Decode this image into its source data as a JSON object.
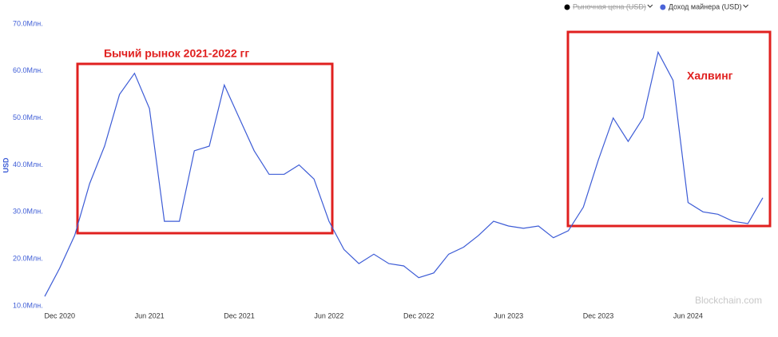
{
  "chart_data": {
    "type": "line",
    "y_label": "USD",
    "legend": [
      {
        "name": "Рыночная цена (USD)",
        "color": "#000000",
        "hidden": true
      },
      {
        "name": "Доход майнера (USD)",
        "color": "#4a63d8",
        "hidden": false
      }
    ],
    "legend_position": "top-right",
    "annotations": [
      "Бычий рынок 2021-2022 гг",
      "Халвинг"
    ],
    "watermark": "Blockchain.com",
    "x": [
      "2020-11",
      "2020-12",
      "2021-01",
      "2021-02",
      "2021-03",
      "2021-04",
      "2021-05",
      "2021-06",
      "2021-07",
      "2021-08",
      "2021-09",
      "2021-10",
      "2021-11",
      "2021-12",
      "2022-01",
      "2022-02",
      "2022-03",
      "2022-04",
      "2022-05",
      "2022-06",
      "2022-07",
      "2022-08",
      "2022-09",
      "2022-10",
      "2022-11",
      "2022-12",
      "2023-01",
      "2023-02",
      "2023-03",
      "2023-04",
      "2023-05",
      "2023-06",
      "2023-07",
      "2023-08",
      "2023-09",
      "2023-10",
      "2023-11",
      "2023-12",
      "2024-01",
      "2024-02",
      "2024-03",
      "2024-04",
      "2024-05",
      "2024-06",
      "2024-07",
      "2024-08",
      "2024-09",
      "2024-10",
      "2024-11"
    ],
    "series": [
      {
        "name": "Доход майнера (USD)",
        "color": "#3d5cd6",
        "values": [
          12,
          18,
          25,
          36,
          44,
          55,
          59.5,
          52,
          28,
          28,
          43,
          44,
          57,
          50,
          43,
          38,
          38,
          40,
          37,
          28,
          22,
          19,
          21,
          19,
          18.5,
          16,
          17,
          21,
          22.5,
          25,
          28,
          27,
          26.5,
          27,
          24.5,
          26,
          31,
          41,
          50,
          45,
          50,
          64,
          58,
          32,
          30,
          29.5,
          28,
          27.5,
          33
        ]
      }
    ],
    "xlim": [
      "2020-11",
      "2024-11"
    ],
    "xticks": [
      {
        "value": "2020-12",
        "label": "Dec 2020"
      },
      {
        "value": "2021-06",
        "label": "Jun 2021"
      },
      {
        "value": "2021-12",
        "label": "Dec 2021"
      },
      {
        "value": "2022-06",
        "label": "Jun 2022"
      },
      {
        "value": "2022-12",
        "label": "Dec 2022"
      },
      {
        "value": "2023-06",
        "label": "Jun 2023"
      },
      {
        "value": "2023-12",
        "label": "Dec 2023"
      },
      {
        "value": "2024-06",
        "label": "Jun 2024"
      }
    ],
    "ylim": [
      10,
      70
    ],
    "yticks": [
      {
        "value": 10,
        "label": "10.0Млн."
      },
      {
        "value": 20,
        "label": "20.0Млн."
      },
      {
        "value": 30,
        "label": "30.0Млн."
      },
      {
        "value": 40,
        "label": "40.0Млн."
      },
      {
        "value": 50,
        "label": "50.0Млн."
      },
      {
        "value": 60,
        "label": "60.0Млн."
      },
      {
        "value": 70,
        "label": "70.0Млн."
      }
    ],
    "grid": false
  }
}
